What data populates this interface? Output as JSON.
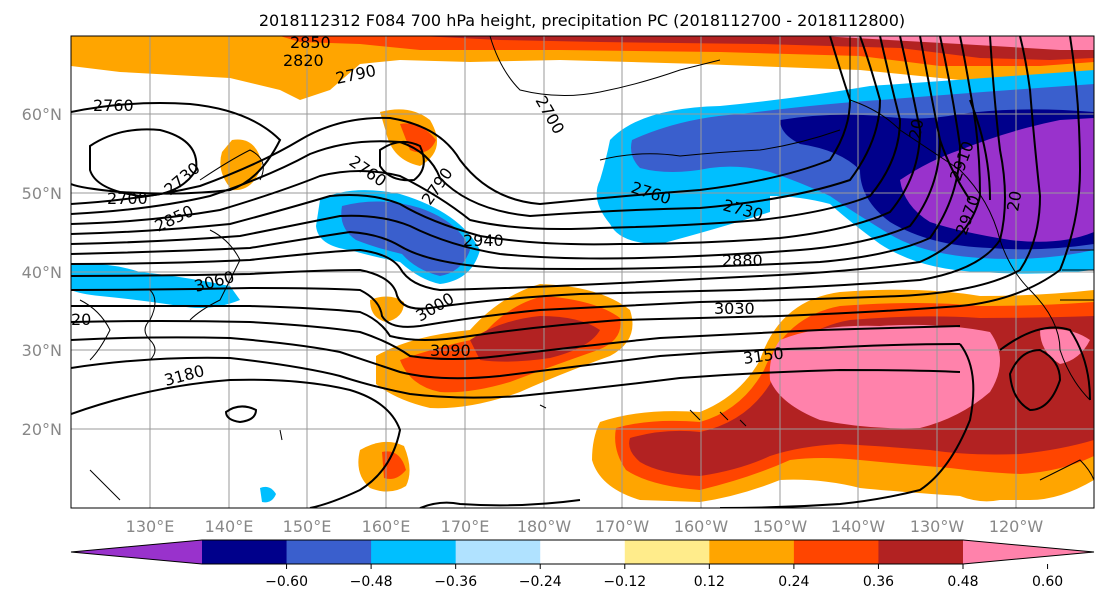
{
  "title": "2018112312 F084 700 hPa height, precipitation PC (2018112700 - 2018112800)",
  "lon_labels": [
    "130°E",
    "140°E",
    "150°E",
    "160°E",
    "170°E",
    "180°W",
    "170°W",
    "160°W",
    "150°W",
    "140°W",
    "130°W",
    "120°W"
  ],
  "lat_labels": [
    "20°N",
    "30°N",
    "40°N",
    "50°N",
    "60°N"
  ],
  "contour_labels": [
    "2850",
    "2820",
    "2790",
    "2760",
    "2700",
    "2730",
    "2850",
    "3060",
    "2760",
    "2790",
    "2700",
    "2760",
    "2730",
    "2940",
    "2880",
    "3000",
    "3030",
    "3090",
    "3150",
    "3180",
    "2910",
    "20",
    "20",
    "2970",
    "20"
  ],
  "colorbar": {
    "colors": [
      "#9932cc",
      "#00008b",
      "#3a5fcd",
      "#00bfff",
      "#b0e2ff",
      "#ffffff",
      "#ffec8b",
      "#ffa500",
      "#ff4500",
      "#b22222",
      "#ff82ab"
    ],
    "tick_labels": [
      "−0.60",
      "−0.48",
      "−0.36",
      "−0.24",
      "−0.12",
      "0.12",
      "0.24",
      "0.36",
      "0.48",
      "0.60"
    ]
  },
  "colors": {
    "grid": "#999999",
    "axis_label": "#888888",
    "contour": "#000000"
  }
}
